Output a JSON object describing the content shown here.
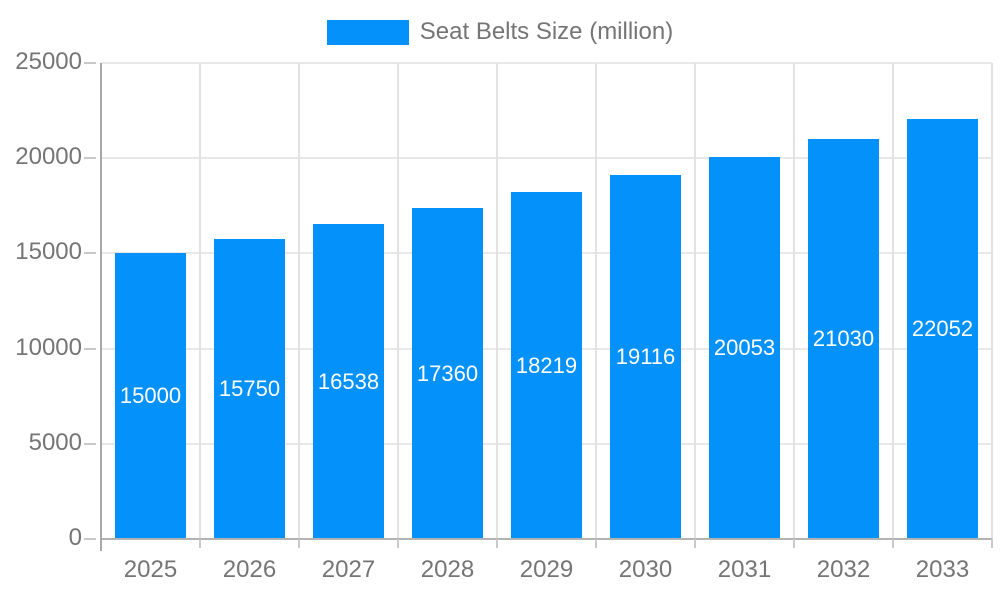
{
  "chart_data": {
    "type": "bar",
    "title": "Seat Belts Size (million)",
    "legend": "Seat Belts Size (million)",
    "legend_position": "top-center",
    "categories": [
      "2025",
      "2026",
      "2027",
      "2028",
      "2029",
      "2030",
      "2031",
      "2032",
      "2033"
    ],
    "values": [
      15000,
      15750,
      16538,
      17360,
      18219,
      19116,
      20053,
      21030,
      22052
    ],
    "xlabel": "",
    "ylabel": "",
    "ylim": [
      0,
      25000
    ],
    "yticks": [
      0,
      5000,
      10000,
      15000,
      20000,
      25000
    ],
    "grid": true,
    "bar_color": "#0591fa",
    "bar_label_color": "#ffffff",
    "axis_text_color": "#757575",
    "gridline_color": "#e8e8e8",
    "axis_line_color": "#a8a8a8",
    "background_color": "#ffffff"
  }
}
